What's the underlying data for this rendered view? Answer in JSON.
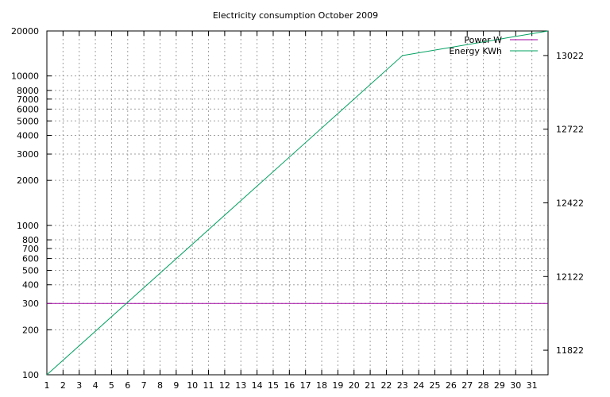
{
  "chart_data": {
    "type": "line",
    "title": "Electricity consumption October 2009",
    "x": {
      "ticks": [
        1,
        2,
        3,
        4,
        5,
        6,
        7,
        8,
        9,
        10,
        11,
        12,
        13,
        14,
        15,
        16,
        17,
        18,
        19,
        20,
        21,
        22,
        23,
        24,
        25,
        26,
        27,
        28,
        29,
        30,
        31
      ],
      "range": [
        1,
        32
      ],
      "grid": true
    },
    "y_left": {
      "scale": "log",
      "range": [
        100,
        20000
      ],
      "ticks": [
        100,
        200,
        300,
        400,
        500,
        600,
        700,
        800,
        1000,
        2000,
        3000,
        4000,
        5000,
        6000,
        7000,
        8000,
        10000,
        20000
      ],
      "grid": true
    },
    "y_right": {
      "scale": "linear",
      "range": [
        11722,
        13122
      ],
      "ticks": [
        11822,
        12122,
        12422,
        12722,
        13022
      ]
    },
    "legend_position": "top-right",
    "series": [
      {
        "name": "Power W",
        "axis": "left",
        "color": "#a000a0",
        "points": [
          [
            1,
            300
          ],
          [
            32,
            300
          ]
        ]
      },
      {
        "name": "Energy KWh",
        "axis": "right",
        "color": "#00a060",
        "points": [
          [
            1,
            11722
          ],
          [
            23,
            13022
          ],
          [
            32,
            13122
          ]
        ]
      }
    ]
  }
}
